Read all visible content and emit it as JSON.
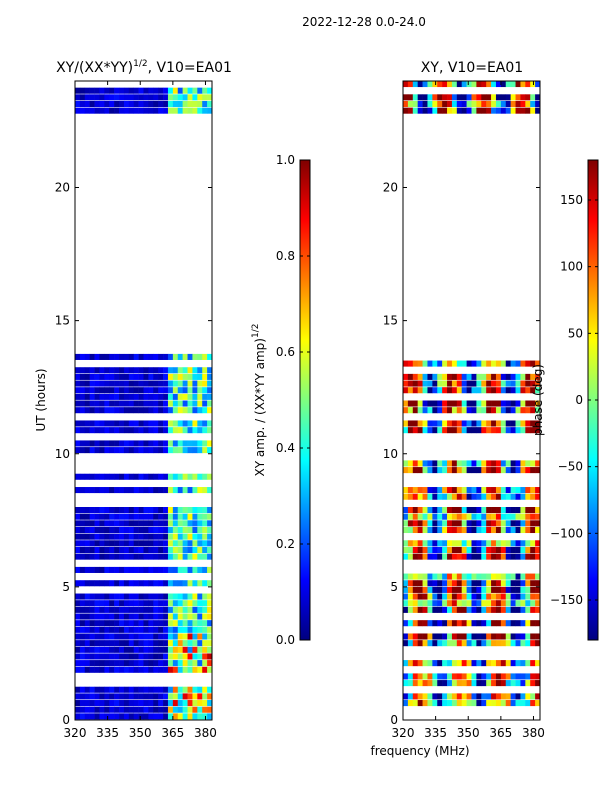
{
  "suptitle": "2022-12-28 0.0-24.0",
  "chart_data": [
    {
      "type": "heatmap",
      "title_main": "XY/(XX*YY)",
      "title_sup": "1/2",
      "title_rest": ", V10=EA01",
      "xlabel": "",
      "ylabel": "UT (hours)",
      "xlim": [
        320,
        383
      ],
      "ylim": [
        0,
        24
      ],
      "xticks": [
        320,
        335,
        350,
        365,
        380
      ],
      "yticks": [
        0,
        5,
        10,
        15,
        20
      ],
      "data_hours": [
        [
          0,
          13.75
        ],
        [
          22.75,
          24
        ]
      ],
      "bright_channel_range_mhz": [
        362,
        381
      ],
      "colorbar": {
        "label_main": "XY amp. / (XX*YY amp)",
        "label_sup": "1/2",
        "range": [
          0.0,
          1.0
        ],
        "ticks": [
          "0.0",
          "0.2",
          "0.4",
          "0.6",
          "0.8",
          "1.0"
        ],
        "tick_values": [
          0.0,
          0.2,
          0.4,
          0.6,
          0.8,
          1.0
        ],
        "colormap": "jet"
      }
    },
    {
      "type": "heatmap",
      "title": "XY, V10=EA01",
      "xlabel": "frequency (MHz)",
      "ylabel": "",
      "xlim": [
        320,
        383
      ],
      "ylim": [
        0,
        24
      ],
      "xticks": [
        320,
        335,
        350,
        365,
        380
      ],
      "yticks": [
        0,
        5,
        10,
        15,
        20
      ],
      "data_hours": [
        [
          0,
          13.75
        ],
        [
          22.75,
          24
        ]
      ],
      "colorbar": {
        "label": "phase (deg)",
        "range": [
          -180,
          180
        ],
        "ticks": [
          "150",
          "100",
          "50",
          "0",
          "−50",
          "−100",
          "−150"
        ],
        "tick_values": [
          150,
          100,
          50,
          0,
          -50,
          -100,
          -150
        ],
        "colormap": "jet"
      }
    }
  ]
}
